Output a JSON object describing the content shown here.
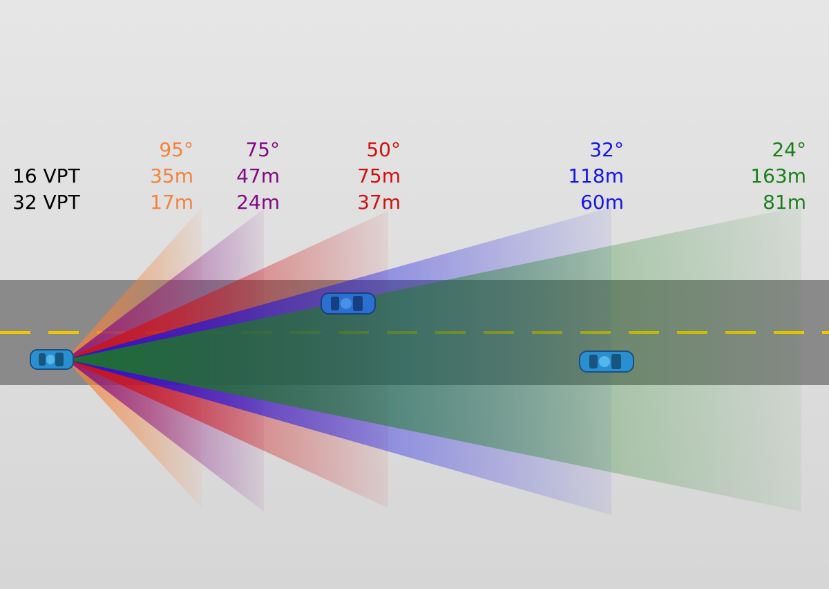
{
  "labels": {
    "row_16": "16 VPT",
    "row_32": "32 VPT"
  },
  "sensors": [
    {
      "angle": "95°",
      "range_16_vpt": "35m",
      "range_32_vpt": "17m",
      "color": "#f2833e"
    },
    {
      "angle": "75°",
      "range_16_vpt": "47m",
      "range_32_vpt": "24m",
      "color": "#820a82"
    },
    {
      "angle": "50°",
      "range_16_vpt": "75m",
      "range_32_vpt": "37m",
      "color": "#d01010"
    },
    {
      "angle": "32°",
      "range_16_vpt": "118m",
      "range_32_vpt": "60m",
      "color": "#1414e6"
    },
    {
      "angle": "24°",
      "range_16_vpt": "163m",
      "range_32_vpt": "81m",
      "color": "#1a7f1a"
    }
  ]
}
